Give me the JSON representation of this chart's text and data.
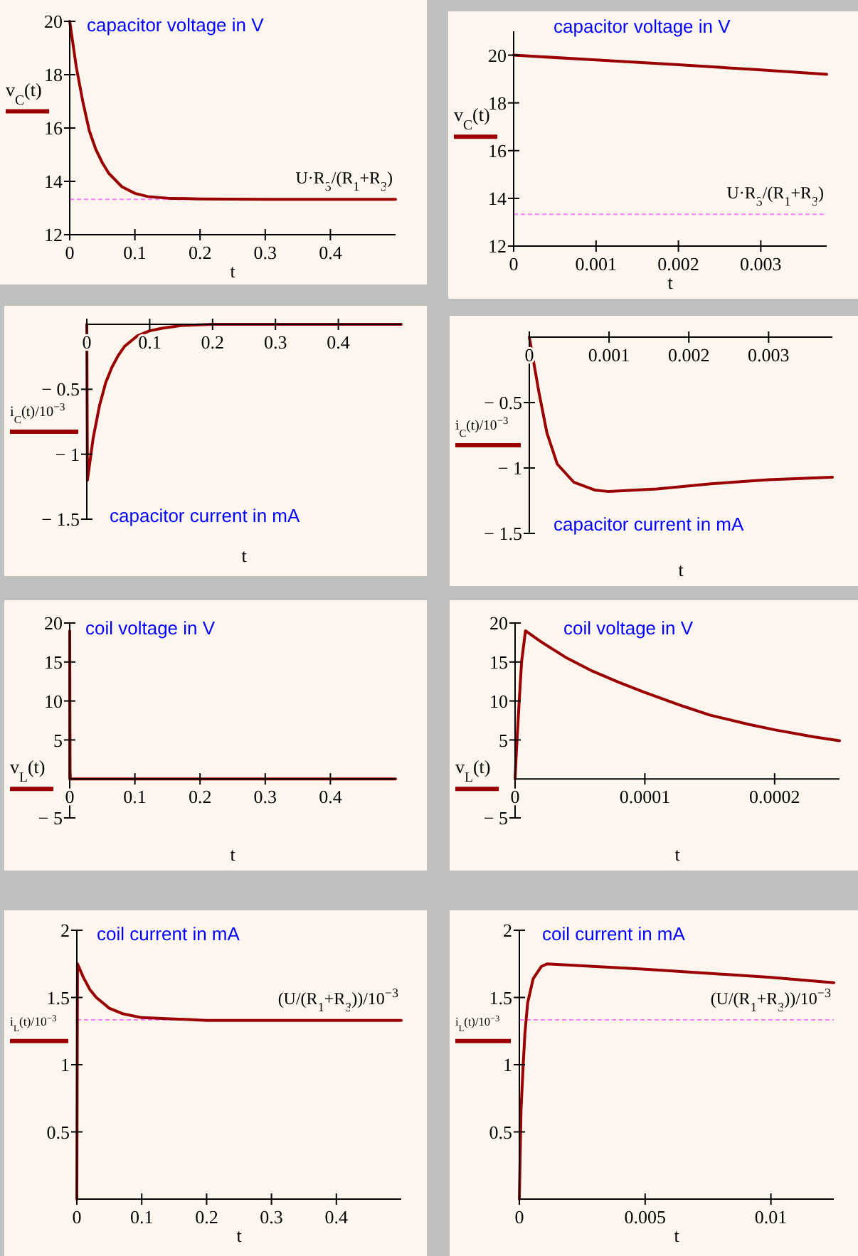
{
  "chart_data": [
    {
      "type": "line",
      "title": "capacitor voltage in V",
      "xlabel": "t",
      "legend": "left",
      "x": [
        0,
        0.01,
        0.02,
        0.03,
        0.04,
        0.05,
        0.06,
        0.08,
        0.1,
        0.12,
        0.15,
        0.2,
        0.3,
        0.4,
        0.5
      ],
      "series": [
        {
          "name": "v$_{C}$(t)",
          "color": "#9b0000",
          "values": [
            20,
            18.3,
            17.0,
            15.9,
            15.2,
            14.7,
            14.3,
            13.8,
            13.55,
            13.43,
            13.37,
            13.34,
            13.33,
            13.33,
            13.33
          ]
        }
      ],
      "xlim": [
        0,
        0.5
      ],
      "ylim": [
        12,
        20
      ],
      "xticks": [
        0,
        0.1,
        0.2,
        0.3,
        0.4
      ],
      "yticks": [
        12,
        14,
        16,
        18,
        20
      ],
      "ref_lines": [
        {
          "axis": "y",
          "value": 13.33,
          "label": "U·R$_{3}$/(R$_{1}$+R$_{3}$)",
          "color": "#ff80ff",
          "line_style": "dashed"
        }
      ]
    },
    {
      "type": "line",
      "title": "capacitor voltage in V",
      "xlabel": "t",
      "legend": "left",
      "x": [
        0,
        0.001,
        0.002,
        0.003,
        0.0038
      ],
      "series": [
        {
          "name": "v$_{C}$(t)",
          "color": "#9b0000",
          "values": [
            20,
            19.8,
            19.6,
            19.38,
            19.2
          ]
        }
      ],
      "xlim": [
        0,
        0.0038
      ],
      "ylim": [
        12,
        21
      ],
      "xticks": [
        0,
        0.001,
        0.002,
        0.003
      ],
      "yticks": [
        12,
        14,
        16,
        18,
        20
      ],
      "ref_lines": [
        {
          "axis": "y",
          "value": 13.33,
          "label": "U·R$_{3}$/(R$_{1}$+R$_{3}$)",
          "color": "#ff80ff",
          "line_style": "dashed"
        }
      ]
    },
    {
      "type": "line",
      "title": "capacitor current in mA",
      "xlabel": "t",
      "legend": "left",
      "x": [
        0,
        0.001,
        0.01,
        0.02,
        0.03,
        0.04,
        0.05,
        0.06,
        0.08,
        0.1,
        0.12,
        0.15,
        0.2,
        0.5
      ],
      "series": [
        {
          "name": "i$_{C}$(t)/10$^{−3}$",
          "color": "#9b0000",
          "values": [
            0,
            -1.2,
            -0.88,
            -0.63,
            -0.45,
            -0.33,
            -0.24,
            -0.17,
            -0.09,
            -0.05,
            -0.03,
            -0.01,
            0,
            0
          ]
        }
      ],
      "xlim": [
        0,
        0.5
      ],
      "ylim": [
        -1.5,
        0
      ],
      "xticks": [
        0,
        0.1,
        0.2,
        0.3,
        0.4
      ],
      "yticks": [
        {
          "value": -0.5,
          "label": "− 0.5"
        },
        {
          "value": -1,
          "label": "− 1"
        },
        {
          "value": -1.5,
          "label": "− 1.5"
        }
      ]
    },
    {
      "type": "line",
      "title": "capacitor current in mA",
      "xlabel": "t",
      "legend": "left",
      "x": [
        0,
        0.00012,
        0.00022,
        0.00035,
        0.00056,
        0.00083,
        0.001,
        0.0016,
        0.0023,
        0.003,
        0.0038
      ],
      "series": [
        {
          "name": "i$_{C}$(t)/10$^{−3}$",
          "color": "#9b0000",
          "values": [
            0,
            -0.42,
            -0.73,
            -0.97,
            -1.11,
            -1.17,
            -1.18,
            -1.16,
            -1.12,
            -1.09,
            -1.07
          ]
        }
      ],
      "xlim": [
        0,
        0.0038
      ],
      "ylim": [
        -1.5,
        0
      ],
      "xticks": [
        0,
        0.001,
        0.002,
        0.003
      ],
      "yticks": [
        {
          "value": -0.5,
          "label": "− 0.5"
        },
        {
          "value": -1,
          "label": "− 1"
        },
        {
          "value": -1.5,
          "label": "− 1.5"
        }
      ]
    },
    {
      "type": "line",
      "title": "coil voltage in V",
      "xlabel": "t",
      "legend": "left",
      "x": [
        0,
        8e-06,
        0.0005,
        0.001,
        0.01,
        0.5
      ],
      "series": [
        {
          "name": "v$_{L}$(t)",
          "color": "#9b0000",
          "values": [
            0,
            19,
            1.2,
            0,
            0,
            0
          ]
        }
      ],
      "xlim": [
        0,
        0.5
      ],
      "ylim": [
        -5,
        20
      ],
      "xticks": [
        0,
        0.1,
        0.2,
        0.3,
        0.4
      ],
      "yticks": [
        {
          "value": -5,
          "label": "− 5"
        },
        5,
        10,
        15,
        20
      ]
    },
    {
      "type": "line",
      "title": "coil voltage in V",
      "xlabel": "t",
      "legend": "left",
      "x": [
        0,
        1e-06,
        3e-06,
        5e-06,
        8e-06,
        2e-05,
        4e-05,
        6e-05,
        8e-05,
        0.0001,
        0.00013,
        0.00015,
        0.00018,
        0.0002,
        0.00023,
        0.00025
      ],
      "series": [
        {
          "name": "v$_{L}$(t)",
          "color": "#9b0000",
          "values": [
            0,
            3.5,
            9.5,
            15,
            19,
            17.6,
            15.5,
            13.8,
            12.4,
            11.1,
            9.3,
            8.2,
            7.0,
            6.3,
            5.4,
            4.9
          ]
        }
      ],
      "xlim": [
        0,
        0.00025
      ],
      "ylim": [
        -5,
        20
      ],
      "xticks": [
        0,
        0.0001,
        0.0002
      ],
      "yticks": [
        {
          "value": -5,
          "label": "− 5"
        },
        5,
        10,
        15,
        20
      ]
    },
    {
      "type": "line",
      "title": "coil current in mA",
      "xlabel": "t",
      "legend": "left",
      "x": [
        0,
        0.001,
        0.01,
        0.02,
        0.03,
        0.04,
        0.05,
        0.07,
        0.1,
        0.15,
        0.2,
        0.5
      ],
      "series": [
        {
          "name": "i$_{L}$(t)/10$^{−3}$",
          "color": "#9b0000",
          "values": [
            0,
            1.75,
            1.65,
            1.56,
            1.5,
            1.46,
            1.42,
            1.38,
            1.35,
            1.34,
            1.33,
            1.33
          ]
        }
      ],
      "xlim": [
        0,
        0.5
      ],
      "ylim": [
        0,
        2
      ],
      "xticks": [
        0,
        0.1,
        0.2,
        0.3,
        0.4
      ],
      "yticks": [
        0.5,
        1,
        1.5,
        2
      ],
      "ref_lines": [
        {
          "axis": "y",
          "value": 1.333,
          "label": "(U/(R$_{1}$+R$_{3}$))/10$^{−3}$",
          "color": "#ff80ff",
          "line_style": "dashed"
        }
      ]
    },
    {
      "type": "line",
      "title": "coil current in mA",
      "xlabel": "t",
      "legend": "left",
      "x": [
        0,
        6.6e-05,
        0.00015,
        0.00022,
        0.00033,
        0.00055,
        0.00087,
        0.0011,
        0.005,
        0.01,
        0.0125
      ],
      "series": [
        {
          "name": "i$_{L}$(t)/10$^{−3}$",
          "color": "#9b0000",
          "values": [
            0,
            0.66,
            0.99,
            1.23,
            1.46,
            1.64,
            1.73,
            1.75,
            1.71,
            1.65,
            1.61
          ]
        }
      ],
      "xlim": [
        0,
        0.0125
      ],
      "ylim": [
        0,
        2
      ],
      "xticks": [
        0,
        0.005,
        0.01
      ],
      "yticks": [
        0.5,
        1,
        1.5,
        2
      ],
      "ref_lines": [
        {
          "axis": "y",
          "value": 1.333,
          "label": "(U/(R$_{1}$+R$_{3}$))/10$^{−3}$",
          "color": "#ff80ff",
          "line_style": "dashed"
        }
      ]
    }
  ]
}
